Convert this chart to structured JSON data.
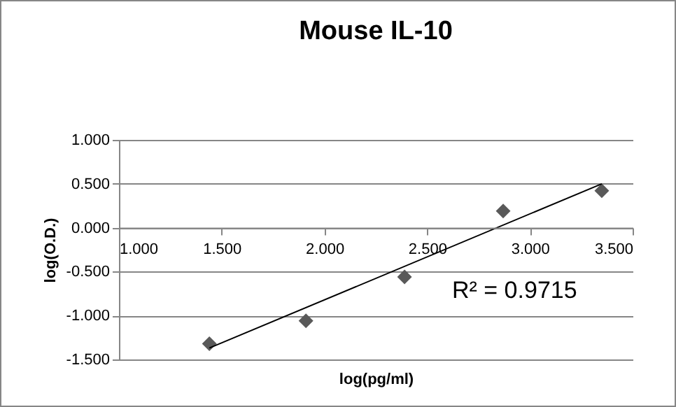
{
  "chart_data": {
    "type": "scatter",
    "title": "Mouse IL-10",
    "xlabel": "log(pg/ml)",
    "ylabel": "log(O.D.)",
    "xlim": [
      1.0,
      3.5
    ],
    "xticks": [
      {
        "value": 1.0,
        "label": "1.000"
      },
      {
        "value": 1.5,
        "label": "1.500"
      },
      {
        "value": 2.0,
        "label": "2.000"
      },
      {
        "value": 2.5,
        "label": "2.500"
      },
      {
        "value": 3.0,
        "label": "3.000"
      },
      {
        "value": 3.5,
        "label": "3.500"
      }
    ],
    "ylim": [
      -1.5,
      1.0
    ],
    "yticks": [
      {
        "value": -1.5,
        "label": "-1.500"
      },
      {
        "value": -1.0,
        "label": "-1.000"
      },
      {
        "value": -0.5,
        "label": "-0.500"
      },
      {
        "value": 0,
        "label": "0.000"
      },
      {
        "value": 0.5,
        "label": "0.500"
      },
      {
        "value": 1.0,
        "label": "1.000"
      }
    ],
    "grid": "y",
    "series": [
      {
        "color": "#595959",
        "marker": "diamond",
        "x": [
          1.44,
          1.91,
          2.39,
          2.87,
          3.35
        ],
        "values": [
          -1.32,
          -1.06,
          -0.56,
          0.19,
          0.42
        ]
      },
      {
        "type": "line",
        "color": "#000000",
        "x": [
          1.44,
          3.35
        ],
        "values": [
          -1.37,
          0.5
        ]
      }
    ],
    "annotations": [
      "R² = 0.9715"
    ]
  }
}
